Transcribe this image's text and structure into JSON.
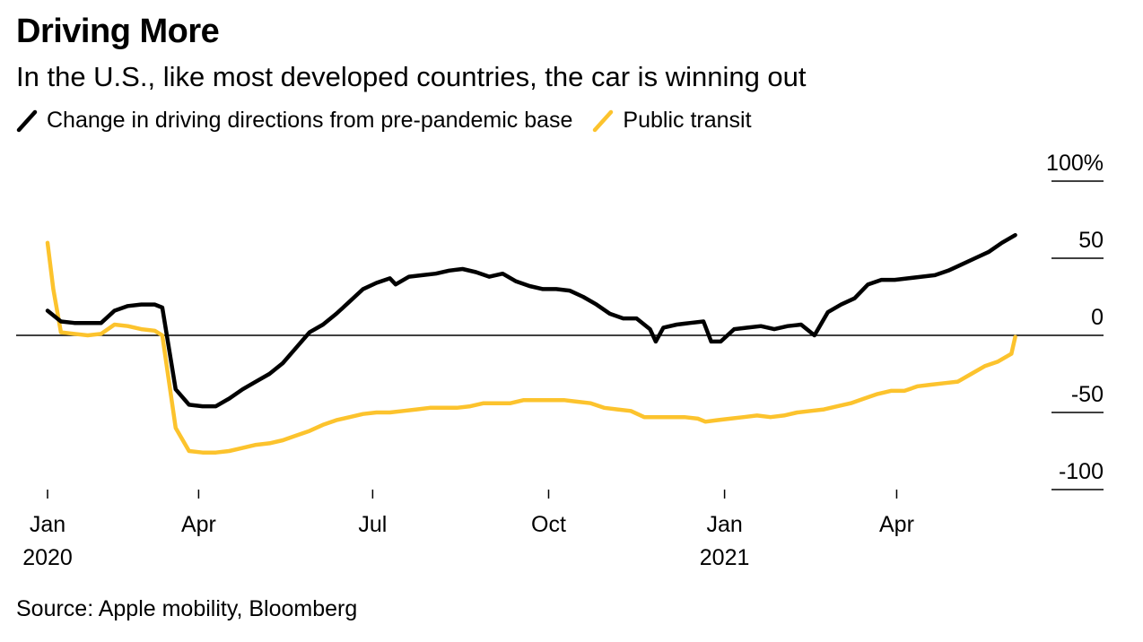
{
  "title": "Driving More",
  "subtitle": "In the U.S., like most developed countries, the car is winning out",
  "source": "Source: Apple mobility, Bloomberg",
  "colors": {
    "driving": "#000000",
    "transit": "#fcc32d",
    "zero_line": "#000000"
  },
  "chart_data": {
    "type": "line",
    "x_unit": "date",
    "xlim": [
      "2020-01-13",
      "2021-06-05"
    ],
    "ylim": [
      -100,
      100
    ],
    "y_ticks": [
      {
        "value": 100,
        "label": "100%"
      },
      {
        "value": 50,
        "label": "50"
      },
      {
        "value": 0,
        "label": "0"
      },
      {
        "value": -50,
        "label": "-50"
      },
      {
        "value": -100,
        "label": "-100"
      }
    ],
    "x_ticks": [
      {
        "date": "2020-01-13",
        "label": "Jan",
        "year": "2020"
      },
      {
        "date": "2020-04-01",
        "label": "Apr",
        "year": ""
      },
      {
        "date": "2020-07-01",
        "label": "Jul",
        "year": ""
      },
      {
        "date": "2020-10-01",
        "label": "Oct",
        "year": ""
      },
      {
        "date": "2021-01-01",
        "label": "Jan",
        "year": "2021"
      },
      {
        "date": "2021-04-01",
        "label": "Apr",
        "year": ""
      }
    ],
    "legend_position": "top-left",
    "series": [
      {
        "name": "Change in driving directions from pre-pandemic base",
        "color": "#000000",
        "points": [
          [
            "2020-01-13",
            16
          ],
          [
            "2020-01-20",
            9
          ],
          [
            "2020-01-27",
            8
          ],
          [
            "2020-02-03",
            8
          ],
          [
            "2020-02-10",
            8
          ],
          [
            "2020-02-17",
            16
          ],
          [
            "2020-02-24",
            19
          ],
          [
            "2020-03-02",
            20
          ],
          [
            "2020-03-09",
            20
          ],
          [
            "2020-03-13",
            18
          ],
          [
            "2020-03-20",
            -35
          ],
          [
            "2020-03-27",
            -45
          ],
          [
            "2020-04-03",
            -46
          ],
          [
            "2020-04-10",
            -46
          ],
          [
            "2020-04-17",
            -41
          ],
          [
            "2020-04-24",
            -35
          ],
          [
            "2020-05-01",
            -30
          ],
          [
            "2020-05-08",
            -25
          ],
          [
            "2020-05-15",
            -18
          ],
          [
            "2020-05-22",
            -8
          ],
          [
            "2020-05-29",
            2
          ],
          [
            "2020-06-05",
            7
          ],
          [
            "2020-06-12",
            14
          ],
          [
            "2020-06-19",
            22
          ],
          [
            "2020-06-26",
            30
          ],
          [
            "2020-07-03",
            34
          ],
          [
            "2020-07-10",
            37
          ],
          [
            "2020-07-13",
            33
          ],
          [
            "2020-07-20",
            38
          ],
          [
            "2020-07-27",
            39
          ],
          [
            "2020-08-03",
            40
          ],
          [
            "2020-08-10",
            42
          ],
          [
            "2020-08-17",
            43
          ],
          [
            "2020-08-24",
            41
          ],
          [
            "2020-08-31",
            38
          ],
          [
            "2020-09-07",
            40
          ],
          [
            "2020-09-14",
            35
          ],
          [
            "2020-09-21",
            32
          ],
          [
            "2020-09-28",
            30
          ],
          [
            "2020-10-05",
            30
          ],
          [
            "2020-10-12",
            29
          ],
          [
            "2020-10-19",
            25
          ],
          [
            "2020-10-26",
            20
          ],
          [
            "2020-11-02",
            14
          ],
          [
            "2020-11-09",
            11
          ],
          [
            "2020-11-16",
            11
          ],
          [
            "2020-11-23",
            4
          ],
          [
            "2020-11-26",
            -4
          ],
          [
            "2020-11-30",
            5
          ],
          [
            "2020-12-07",
            7
          ],
          [
            "2020-12-14",
            8
          ],
          [
            "2020-12-21",
            9
          ],
          [
            "2020-12-25",
            -4
          ],
          [
            "2020-12-30",
            -4
          ],
          [
            "2021-01-06",
            4
          ],
          [
            "2021-01-13",
            5
          ],
          [
            "2021-01-20",
            6
          ],
          [
            "2021-01-27",
            4
          ],
          [
            "2021-02-03",
            6
          ],
          [
            "2021-02-10",
            7
          ],
          [
            "2021-02-17",
            0
          ],
          [
            "2021-02-24",
            15
          ],
          [
            "2021-03-03",
            20
          ],
          [
            "2021-03-10",
            24
          ],
          [
            "2021-03-17",
            33
          ],
          [
            "2021-03-24",
            36
          ],
          [
            "2021-03-31",
            36
          ],
          [
            "2021-04-07",
            37
          ],
          [
            "2021-04-14",
            38
          ],
          [
            "2021-04-21",
            39
          ],
          [
            "2021-04-28",
            42
          ],
          [
            "2021-05-05",
            46
          ],
          [
            "2021-05-12",
            50
          ],
          [
            "2021-05-19",
            54
          ],
          [
            "2021-05-26",
            60
          ],
          [
            "2021-06-02",
            65
          ]
        ]
      },
      {
        "name": "Public transit",
        "color": "#fcc32d",
        "points": [
          [
            "2020-01-13",
            60
          ],
          [
            "2020-01-16",
            30
          ],
          [
            "2020-01-20",
            2
          ],
          [
            "2020-01-27",
            1
          ],
          [
            "2020-02-03",
            0
          ],
          [
            "2020-02-10",
            1
          ],
          [
            "2020-02-17",
            7
          ],
          [
            "2020-02-24",
            6
          ],
          [
            "2020-03-02",
            4
          ],
          [
            "2020-03-09",
            3
          ],
          [
            "2020-03-13",
            0
          ],
          [
            "2020-03-20",
            -60
          ],
          [
            "2020-03-27",
            -75
          ],
          [
            "2020-04-03",
            -76
          ],
          [
            "2020-04-10",
            -76
          ],
          [
            "2020-04-17",
            -75
          ],
          [
            "2020-04-24",
            -73
          ],
          [
            "2020-05-01",
            -71
          ],
          [
            "2020-05-08",
            -70
          ],
          [
            "2020-05-15",
            -68
          ],
          [
            "2020-05-22",
            -65
          ],
          [
            "2020-05-29",
            -62
          ],
          [
            "2020-06-05",
            -58
          ],
          [
            "2020-06-12",
            -55
          ],
          [
            "2020-06-19",
            -53
          ],
          [
            "2020-06-26",
            -51
          ],
          [
            "2020-07-03",
            -50
          ],
          [
            "2020-07-10",
            -50
          ],
          [
            "2020-07-17",
            -49
          ],
          [
            "2020-07-24",
            -48
          ],
          [
            "2020-07-31",
            -47
          ],
          [
            "2020-08-07",
            -47
          ],
          [
            "2020-08-14",
            -47
          ],
          [
            "2020-08-21",
            -46
          ],
          [
            "2020-08-28",
            -44
          ],
          [
            "2020-09-04",
            -44
          ],
          [
            "2020-09-11",
            -44
          ],
          [
            "2020-09-18",
            -42
          ],
          [
            "2020-09-25",
            -42
          ],
          [
            "2020-10-02",
            -42
          ],
          [
            "2020-10-09",
            -42
          ],
          [
            "2020-10-16",
            -43
          ],
          [
            "2020-10-23",
            -44
          ],
          [
            "2020-10-30",
            -47
          ],
          [
            "2020-11-06",
            -48
          ],
          [
            "2020-11-13",
            -49
          ],
          [
            "2020-11-20",
            -53
          ],
          [
            "2020-11-27",
            -53
          ],
          [
            "2020-12-04",
            -53
          ],
          [
            "2020-12-11",
            -53
          ],
          [
            "2020-12-18",
            -54
          ],
          [
            "2020-12-22",
            -56
          ],
          [
            "2020-12-28",
            -55
          ],
          [
            "2021-01-04",
            -54
          ],
          [
            "2021-01-11",
            -53
          ],
          [
            "2021-01-18",
            -52
          ],
          [
            "2021-01-25",
            -53
          ],
          [
            "2021-02-01",
            -52
          ],
          [
            "2021-02-08",
            -50
          ],
          [
            "2021-02-15",
            -49
          ],
          [
            "2021-02-22",
            -48
          ],
          [
            "2021-03-01",
            -46
          ],
          [
            "2021-03-08",
            -44
          ],
          [
            "2021-03-15",
            -41
          ],
          [
            "2021-03-22",
            -38
          ],
          [
            "2021-03-29",
            -36
          ],
          [
            "2021-04-05",
            -36
          ],
          [
            "2021-04-12",
            -33
          ],
          [
            "2021-04-19",
            -32
          ],
          [
            "2021-04-26",
            -31
          ],
          [
            "2021-05-03",
            -30
          ],
          [
            "2021-05-10",
            -25
          ],
          [
            "2021-05-17",
            -20
          ],
          [
            "2021-05-24",
            -17
          ],
          [
            "2021-05-31",
            -12
          ],
          [
            "2021-06-02",
            -1
          ]
        ]
      }
    ]
  }
}
